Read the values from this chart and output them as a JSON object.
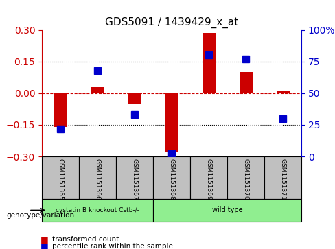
{
  "title": "GDS5091 / 1439429_x_at",
  "samples": [
    "GSM1151365",
    "GSM1151366",
    "GSM1151367",
    "GSM1151368",
    "GSM1151369",
    "GSM1151370",
    "GSM1151371"
  ],
  "red_values": [
    -0.16,
    0.03,
    -0.05,
    -0.28,
    0.285,
    0.1,
    0.01
  ],
  "blue_values": [
    22,
    68,
    33,
    2,
    80,
    77,
    30
  ],
  "ylim_left": [
    -0.3,
    0.3
  ],
  "ylim_right": [
    0,
    100
  ],
  "yticks_left": [
    -0.3,
    -0.15,
    0,
    0.15,
    0.3
  ],
  "yticks_right": [
    0,
    25,
    50,
    75,
    100
  ],
  "hlines": [
    -0.15,
    0,
    0.15
  ],
  "groups": [
    {
      "label": "cystatin B knockout Cstb-/-",
      "samples": [
        "GSM1151365",
        "GSM1151366",
        "GSM1151367"
      ],
      "color": "#90EE90"
    },
    {
      "label": "wild type",
      "samples": [
        "GSM1151368",
        "GSM1151369",
        "GSM1151370",
        "GSM1151371"
      ],
      "color": "#90EE90"
    }
  ],
  "group_boundary": 3,
  "red_color": "#CC0000",
  "blue_color": "#0000CC",
  "legend_label_red": "transformed count",
  "legend_label_blue": "percentile rank within the sample",
  "genotype_label": "genotype/variation",
  "left_ylabel_color": "#CC0000",
  "right_ylabel_color": "#0000CC",
  "bar_width": 0.35,
  "blue_marker_size": 7,
  "grid_color": "black",
  "zero_line_color": "#CC0000",
  "bg_color": "white",
  "plot_bg_color": "white"
}
